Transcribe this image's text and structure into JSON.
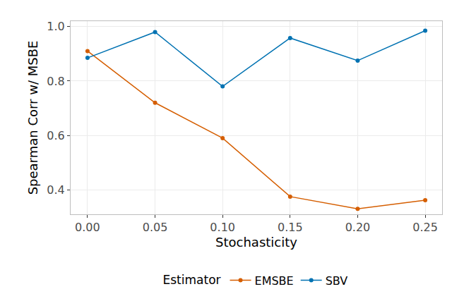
{
  "chart_data": {
    "type": "line",
    "x_label": "Stochasticity",
    "y_label": "Spearman Corr w/ MSBE",
    "legend_title": "Estimator",
    "legend": "bottom",
    "grid": true,
    "x": [
      0,
      0.05,
      0.1,
      0.15,
      0.2,
      0.25
    ],
    "series": [
      {
        "name": "EMSBE",
        "color": "#D55E00",
        "marker": "circle",
        "line_style": "solid",
        "values": [
          0.91,
          0.72,
          0.59,
          0.375,
          0.33,
          0.362
        ]
      },
      {
        "name": "SBV",
        "color": "#0072B2",
        "marker": "circle",
        "line_style": "solid",
        "values": [
          0.885,
          0.98,
          0.78,
          0.958,
          0.875,
          0.985
        ]
      }
    ],
    "xlim": [
      -0.0125,
      0.2625
    ],
    "xticks": [
      {
        "value": 0,
        "label": "0.00"
      },
      {
        "value": 0.05,
        "label": "0.05"
      },
      {
        "value": 0.1,
        "label": "0.10"
      },
      {
        "value": 0.15,
        "label": "0.15"
      },
      {
        "value": 0.2,
        "label": "0.20"
      },
      {
        "value": 0.25,
        "label": "0.25"
      }
    ],
    "ylim": [
      0.31,
      1.02
    ],
    "yticks": [
      0.4,
      0.6,
      0.8,
      {
        "value": 1,
        "label": "1.0"
      }
    ]
  }
}
